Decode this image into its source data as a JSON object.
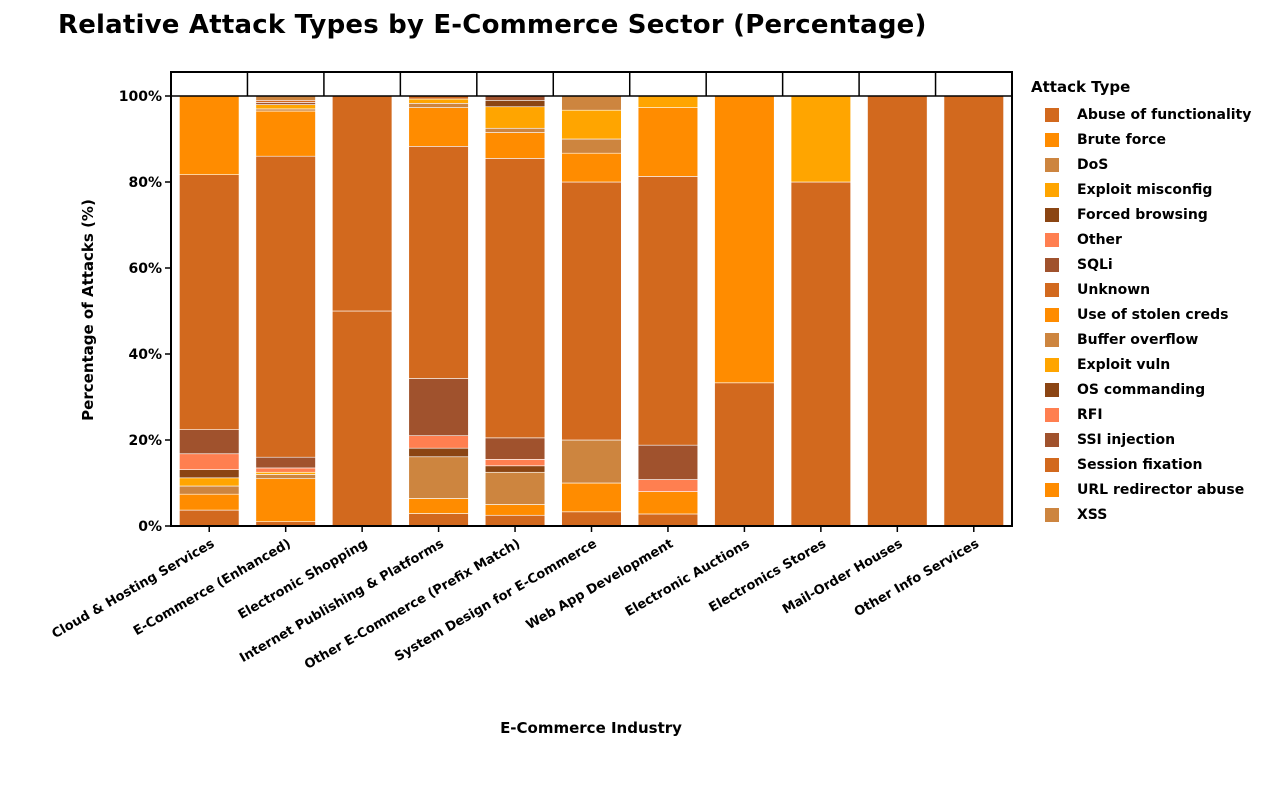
{
  "chart_data": {
    "type": "bar",
    "stacked": true,
    "title": "Relative Attack Types by E-Commerce Sector (Percentage)",
    "xlabel": "E-Commerce Industry",
    "ylabel": "Percentage of Attacks (%)",
    "ylim": [
      0,
      100
    ],
    "yticks": [
      "0%",
      "20%",
      "40%",
      "60%",
      "80%",
      "100%"
    ],
    "legend_title": "Attack Type",
    "legend_position": "right",
    "categories": [
      "Cloud & Hosting Services",
      "E-Commerce (Enhanced)",
      "Electronic Shopping",
      "Internet Publishing & Platforms",
      "Other E-Commerce (Prefix Match)",
      "System Design for E-Commerce",
      "Web App Development",
      "Electronic Auctions",
      "Electronics Stores",
      "Mail-Order Houses",
      "Other Info Services"
    ],
    "series": [
      {
        "name": "Abuse of functionality",
        "color": "#D2691E",
        "values": [
          3.7,
          1.0,
          50.0,
          2.9,
          2.5,
          3.3,
          2.8,
          33.3,
          0,
          0,
          0
        ]
      },
      {
        "name": "Brute force",
        "color": "#FF8C00",
        "values": [
          3.7,
          10.0,
          0,
          3.5,
          2.5,
          6.7,
          5.2,
          0,
          0,
          0,
          0
        ]
      },
      {
        "name": "DoS",
        "color": "#CD853F",
        "values": [
          1.9,
          1.0,
          0,
          9.7,
          7.5,
          10.0,
          0,
          0,
          0,
          0,
          0
        ]
      },
      {
        "name": "Exploit misconfig",
        "color": "#FFA500",
        "values": [
          1.9,
          0.5,
          0,
          0,
          0,
          0,
          0,
          0,
          0,
          0,
          0
        ]
      },
      {
        "name": "Forced browsing",
        "color": "#8B4513",
        "values": [
          1.9,
          0,
          0,
          2.0,
          1.5,
          0,
          0,
          0,
          0,
          0,
          0
        ]
      },
      {
        "name": "Other",
        "color": "#FF7F50",
        "values": [
          3.7,
          1.0,
          0,
          2.9,
          1.5,
          0,
          2.8,
          0,
          0,
          0,
          0
        ]
      },
      {
        "name": "SQLi",
        "color": "#A0522D",
        "values": [
          5.6,
          2.5,
          0,
          13.3,
          5.0,
          0,
          8.0,
          0,
          0,
          0,
          0
        ]
      },
      {
        "name": "Unknown",
        "color": "#D2691E",
        "values": [
          59.3,
          70.0,
          50.0,
          54.0,
          65.0,
          60.0,
          62.5,
          0,
          80.0,
          100,
          100
        ]
      },
      {
        "name": "Use of stolen creds",
        "color": "#FF8C00",
        "values": [
          18.5,
          10.5,
          0,
          9.0,
          6.0,
          6.7,
          16.0,
          66.7,
          0,
          0,
          0
        ]
      },
      {
        "name": "Buffer overflow",
        "color": "#CD853F",
        "values": [
          0,
          0.5,
          0,
          1.0,
          1.0,
          3.3,
          0,
          0,
          0,
          0,
          0
        ]
      },
      {
        "name": "Exploit vuln",
        "color": "#FFA500",
        "values": [
          0,
          1.0,
          0,
          1.0,
          5.0,
          6.7,
          2.7,
          0,
          20.0,
          0,
          0
        ]
      },
      {
        "name": "OS commanding",
        "color": "#8B4513",
        "values": [
          0,
          0,
          0,
          0,
          1.5,
          0,
          0,
          0,
          0,
          0,
          0
        ]
      },
      {
        "name": "RFI",
        "color": "#FF7F50",
        "values": [
          0,
          0,
          0,
          0,
          0,
          0,
          0,
          0,
          0,
          0,
          0
        ]
      },
      {
        "name": "SSI injection",
        "color": "#A0522D",
        "values": [
          0,
          0.5,
          0,
          0,
          1.0,
          0,
          0,
          0,
          0,
          0,
          0
        ]
      },
      {
        "name": "Session fixation",
        "color": "#D2691E",
        "values": [
          0,
          0.5,
          0,
          0.7,
          0,
          0,
          0,
          0,
          0,
          0,
          0
        ]
      },
      {
        "name": "URL redirector abuse",
        "color": "#FF8C00",
        "values": [
          0,
          0,
          0,
          0,
          0,
          0,
          0,
          0,
          0,
          0,
          0
        ]
      },
      {
        "name": "XSS",
        "color": "#CD853F",
        "values": [
          0,
          1.0,
          0,
          0,
          0,
          3.3,
          0,
          0,
          0,
          0,
          0
        ]
      }
    ]
  }
}
